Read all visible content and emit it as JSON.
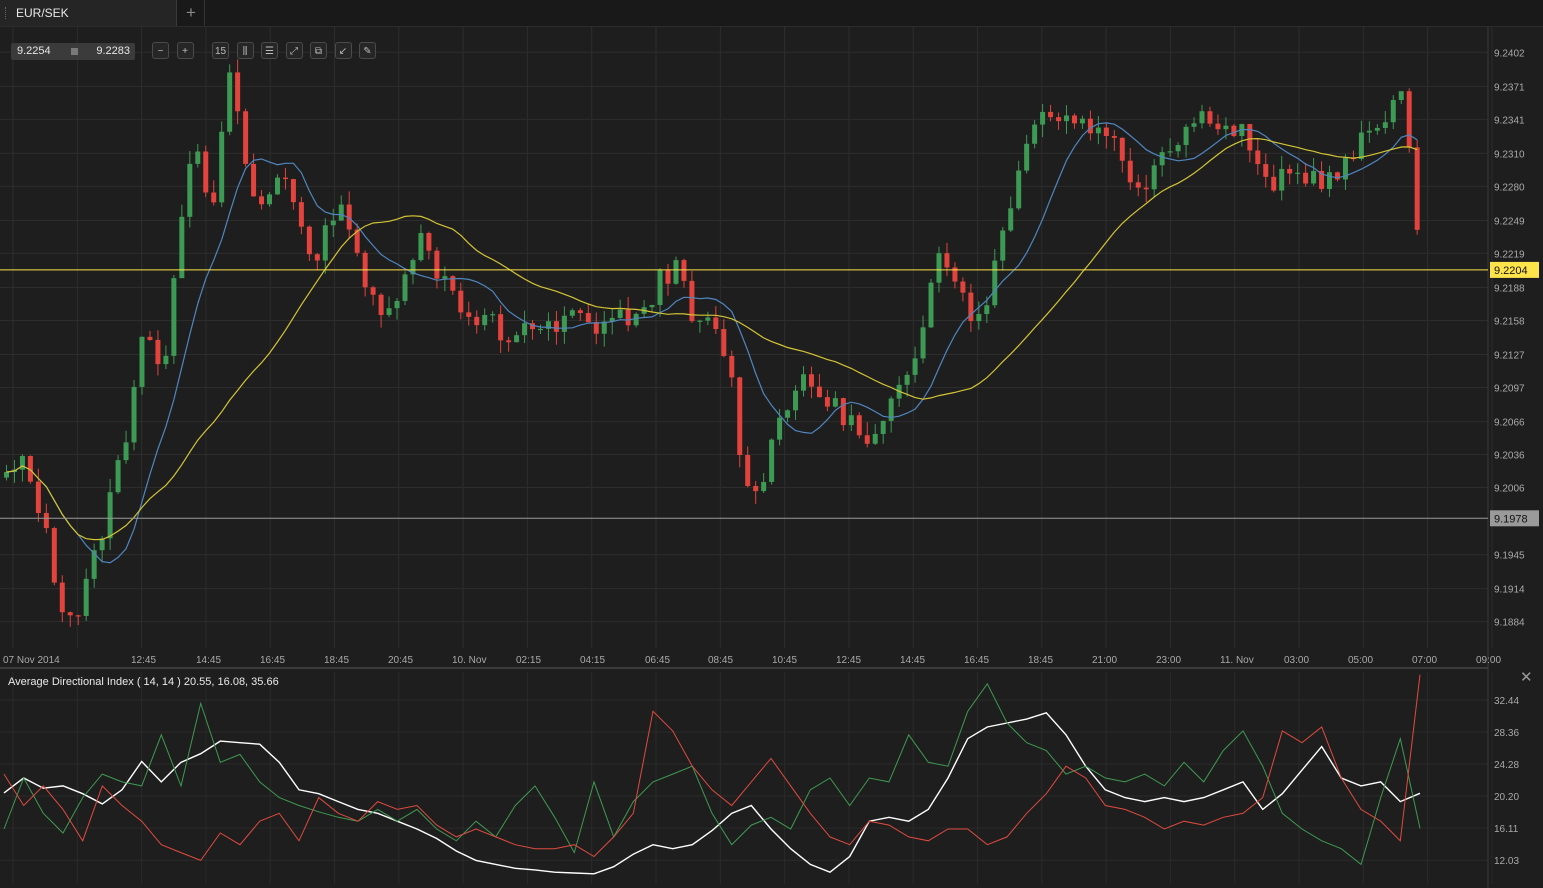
{
  "tab": {
    "title": "EUR/SEK",
    "add_label": "+"
  },
  "quote": {
    "bid": "9.2254",
    "ask": "9.2283"
  },
  "toolbar": [
    {
      "name": "zoom-out-icon",
      "glyph": "−"
    },
    {
      "name": "zoom-in-icon",
      "glyph": "+"
    },
    {
      "name": "timeframe-icon",
      "glyph": "15"
    },
    {
      "name": "chart-type-icon",
      "glyph": "⫼"
    },
    {
      "name": "settings-icon",
      "glyph": "☰"
    },
    {
      "name": "fit-icon",
      "glyph": "⤢"
    },
    {
      "name": "copy-icon",
      "glyph": "⧉"
    },
    {
      "name": "export-icon",
      "glyph": "↙"
    },
    {
      "name": "draw-icon",
      "glyph": "✎"
    }
  ],
  "colors": {
    "up": "#3d9a54",
    "down": "#e2433c",
    "ma_fast": "#4f86c0",
    "ma_slow": "#d3c435",
    "level": "#ffe34a",
    "current": "#9a9a9a",
    "adx": "#ffffff",
    "plus_di": "#3f9a52",
    "minus_di": "#df4b3f"
  },
  "chart_data": [
    {
      "type": "candlestick",
      "title": "EUR/SEK",
      "y_ticks": [
        "9.2402",
        "9.2371",
        "9.2341",
        "9.2310",
        "9.2280",
        "9.2249",
        "9.2219",
        "9.2188",
        "9.2158",
        "9.2127",
        "9.2097",
        "9.2066",
        "9.2036",
        "9.2006",
        "9.1945",
        "9.1914",
        "9.1884"
      ],
      "x_ticks": [
        "07 Nov 2014",
        "12:45",
        "14:45",
        "16:45",
        "18:45",
        "20:45",
        "10. Nov",
        "02:15",
        "04:15",
        "06:45",
        "08:45",
        "10:45",
        "12:45",
        "14:45",
        "16:45",
        "18:45",
        "21:00",
        "23:00",
        "11. Nov",
        "03:00",
        "05:00",
        "07:00",
        "09:00"
      ],
      "ylim": [
        9.186,
        9.2425
      ],
      "horizontal_levels": [
        {
          "label": "9.2204",
          "value": 9.2204,
          "color": "#ffe34a"
        },
        {
          "label": "9.1978",
          "value": 9.1978,
          "color": "#9a9a9a"
        }
      ],
      "anchors": [
        9.2015,
        9.2027,
        9.1985,
        9.1908,
        9.1885,
        9.1935,
        9.1995,
        9.206,
        9.216,
        9.2095,
        9.2245,
        9.233,
        9.225,
        9.239,
        9.228,
        9.226,
        9.2295,
        9.2255,
        9.2205,
        9.226,
        9.225,
        9.218,
        9.2155,
        9.22,
        9.2235,
        9.2205,
        9.219,
        9.215,
        9.2165,
        9.2125,
        9.216,
        9.215,
        9.2148,
        9.2165,
        9.215,
        9.216,
        9.2162,
        9.2158,
        9.22,
        9.2205,
        9.215,
        9.2155,
        9.212,
        9.2,
        9.202,
        9.2075,
        9.21,
        9.2095,
        9.208,
        9.207,
        9.204,
        9.206,
        9.21,
        9.214,
        9.222,
        9.221,
        9.2155,
        9.218,
        9.225,
        9.23,
        9.236,
        9.234,
        9.2345,
        9.2333,
        9.2335,
        9.2295,
        9.228,
        9.231,
        9.2325,
        9.234,
        9.2348,
        9.233,
        9.233,
        9.228,
        9.2285,
        9.229,
        9.229,
        9.2285,
        9.23,
        9.2325,
        9.2345,
        9.2368,
        9.225
      ],
      "series": [
        {
          "name": "",
          "kind": "moving-average-fast"
        },
        {
          "name": "",
          "kind": "moving-average-slow"
        }
      ]
    },
    {
      "type": "line",
      "title": "Average Directional Index ( 14, 14 ) 20.55, 16.08, 35.66",
      "y_ticks": [
        "32.44",
        "28.36",
        "24.28",
        "20.20",
        "16.11",
        "12.03"
      ],
      "ylim": [
        9.0,
        36.0
      ],
      "series": [
        {
          "name": "ADX",
          "values": [
            20.6,
            22.5,
            21.2,
            21.5,
            20.5,
            19.2,
            21.0,
            24.6,
            22.0,
            24.5,
            25.6,
            27.2,
            27.0,
            26.8,
            24.5,
            21.0,
            20.5,
            19.5,
            18.5,
            18.0,
            17.0,
            16.0,
            14.8,
            13.2,
            12.0,
            11.5,
            11.0,
            10.8,
            10.5,
            10.4,
            10.3,
            11.2,
            12.8,
            14.0,
            13.5,
            14.0,
            15.8,
            18.0,
            19.0,
            16.0,
            13.5,
            11.5,
            10.5,
            12.5,
            17.0,
            17.5,
            17.0,
            18.5,
            22.5,
            27.5,
            29.0,
            29.5,
            30.0,
            30.8,
            28.0,
            24.0,
            21.0,
            20.0,
            19.5,
            20.0,
            19.5,
            20.0,
            21.0,
            22.0,
            18.5,
            20.5,
            23.5,
            26.5,
            22.5,
            21.5,
            22.0,
            19.5,
            20.55
          ]
        },
        {
          "name": "+DI",
          "values": [
            16.0,
            22.5,
            18.0,
            15.5,
            20.0,
            23.0,
            22.0,
            21.5,
            28.0,
            21.5,
            32.0,
            24.5,
            25.5,
            22.0,
            20.0,
            19.0,
            18.2,
            17.5,
            17.0,
            18.5,
            17.0,
            18.5,
            16.0,
            14.5,
            17.0,
            15.0,
            19.0,
            21.5,
            17.5,
            13.0,
            22.0,
            15.0,
            19.5,
            22.0,
            23.0,
            24.0,
            18.0,
            14.0,
            16.5,
            17.5,
            16.0,
            21.0,
            22.5,
            19.0,
            22.5,
            22.0,
            28.0,
            24.5,
            24.0,
            31.0,
            34.5,
            29.5,
            27.0,
            26.0,
            23.0,
            24.0,
            22.5,
            22.0,
            23.0,
            21.5,
            24.5,
            22.0,
            26.0,
            28.5,
            24.0,
            18.0,
            16.0,
            14.5,
            13.5,
            11.5,
            20.0,
            27.5,
            16.08
          ]
        },
        {
          "name": "-DI",
          "values": [
            23.0,
            19.0,
            21.5,
            18.5,
            14.5,
            21.5,
            19.0,
            17.0,
            14.0,
            13.0,
            12.0,
            15.5,
            14.0,
            17.0,
            18.0,
            14.5,
            20.0,
            18.0,
            17.0,
            19.5,
            18.5,
            19.0,
            16.5,
            15.0,
            16.0,
            15.0,
            14.0,
            13.5,
            13.5,
            14.0,
            12.5,
            15.0,
            18.0,
            31.0,
            28.5,
            24.0,
            21.0,
            19.0,
            22.0,
            25.0,
            21.5,
            18.0,
            15.0,
            14.0,
            17.0,
            16.5,
            15.0,
            14.5,
            16.0,
            16.0,
            14.0,
            15.0,
            18.0,
            20.5,
            24.0,
            22.5,
            19.0,
            18.5,
            17.5,
            16.0,
            17.0,
            16.5,
            17.5,
            18.0,
            20.0,
            28.5,
            27.0,
            29.0,
            22.5,
            18.5,
            17.0,
            14.5,
            35.66
          ]
        }
      ]
    }
  ]
}
